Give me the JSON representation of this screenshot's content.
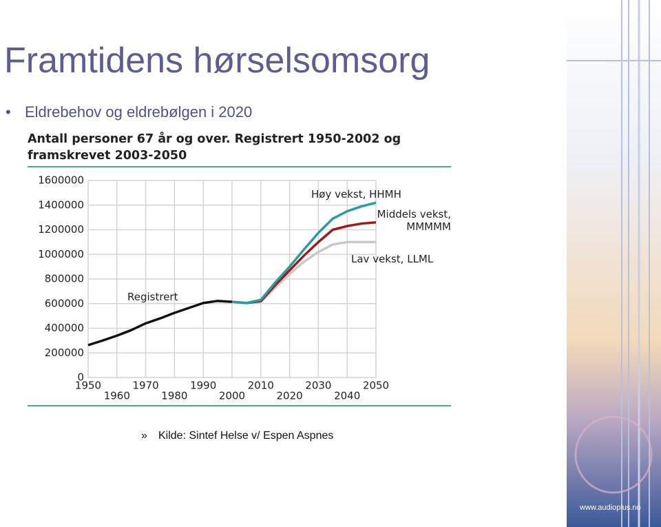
{
  "slide": {
    "title": "Framtidens hørselsomsorg",
    "bullet": "Eldrebehov og eldrebølgen i 2020",
    "source": "Kilde: Sintef Helse v/ Espen Aspnes",
    "sidebar_url": "www.audioplus.no"
  },
  "chart_data": {
    "type": "line",
    "title": "Antall personer 67 år og over. Registrert 1950-2002 og framskrevet 2003-2050",
    "x": [
      1950,
      1955,
      1960,
      1965,
      1970,
      1975,
      1980,
      1985,
      1990,
      1995,
      2000,
      2005,
      2010,
      2015,
      2020,
      2025,
      2030,
      2035,
      2040,
      2045,
      2050
    ],
    "series": [
      {
        "name": "Registrert",
        "color": "#111111",
        "values": [
          263000,
          300000,
          340000,
          385000,
          440000,
          480000,
          525000,
          565000,
          605000,
          622000,
          615000,
          null,
          null,
          null,
          null,
          null,
          null,
          null,
          null,
          null,
          null
        ]
      },
      {
        "name": "Lav vekst, LLML",
        "color": "#c8c8c8",
        "values": [
          null,
          null,
          null,
          null,
          null,
          null,
          null,
          null,
          null,
          null,
          615000,
          605000,
          615000,
          730000,
          840000,
          940000,
          1020000,
          1080000,
          1100000,
          1100000,
          1100000
        ]
      },
      {
        "name": "Middels vekst, MMMMM",
        "color": "#9e1b1b",
        "values": [
          null,
          null,
          null,
          null,
          null,
          null,
          null,
          null,
          null,
          null,
          615000,
          605000,
          620000,
          750000,
          870000,
          990000,
          1100000,
          1200000,
          1230000,
          1250000,
          1260000
        ]
      },
      {
        "name": "Høy vekst, HHMH",
        "color": "#2a9d9f",
        "values": [
          null,
          null,
          null,
          null,
          null,
          null,
          null,
          null,
          null,
          null,
          615000,
          605000,
          630000,
          772000,
          900000,
          1040000,
          1175000,
          1290000,
          1350000,
          1390000,
          1420000
        ]
      }
    ],
    "xlim": [
      1950,
      2050
    ],
    "xticks": [
      1950,
      1960,
      1970,
      1980,
      1990,
      2000,
      2010,
      2020,
      2030,
      2040,
      2050
    ],
    "ylim": [
      0,
      1600000
    ],
    "yticks": [
      0,
      200000,
      400000,
      600000,
      800000,
      1000000,
      1200000,
      1400000,
      1600000
    ],
    "grid": true
  }
}
